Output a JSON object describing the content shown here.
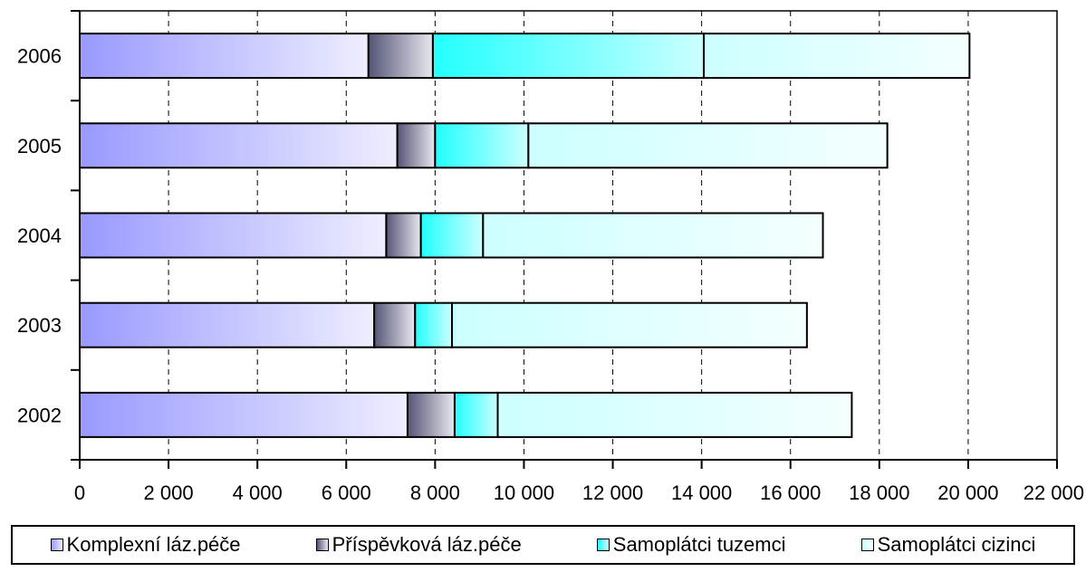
{
  "chart_data": {
    "type": "bar",
    "orientation": "horizontal",
    "stacked": true,
    "categories": [
      "2006",
      "2005",
      "2004",
      "2003",
      "2002"
    ],
    "series": [
      {
        "name": "Komplexní láz.péče",
        "values": [
          6500,
          7150,
          6900,
          6630,
          7380
        ],
        "color_start": "#9999ff",
        "color_end": "#eeeeff"
      },
      {
        "name": "Příspěvková láz.péče",
        "values": [
          1450,
          850,
          780,
          920,
          1060
        ],
        "color_start": "#555577",
        "color_end": "#e8e8f0"
      },
      {
        "name": "Samoplátci tuzemci",
        "values": [
          6100,
          2100,
          1400,
          830,
          970
        ],
        "color_start": "#22ffff",
        "color_end": "#ccffff"
      },
      {
        "name": "Samoplátci cizinci",
        "values": [
          5980,
          8080,
          7650,
          7990,
          7970
        ],
        "color_start": "#ccffff",
        "color_end": "#f4ffff"
      }
    ],
    "xlim": [
      0,
      22000
    ],
    "xticks": [
      0,
      2000,
      4000,
      6000,
      8000,
      10000,
      12000,
      14000,
      16000,
      18000,
      20000,
      22000
    ],
    "xtick_labels": [
      "0",
      "2 000",
      "4 000",
      "6 000",
      "8 000",
      "10 000",
      "12 000",
      "14 000",
      "16 000",
      "18 000",
      "20 000",
      "22 000"
    ],
    "grid": "vertical dashed",
    "legend_position": "bottom"
  }
}
